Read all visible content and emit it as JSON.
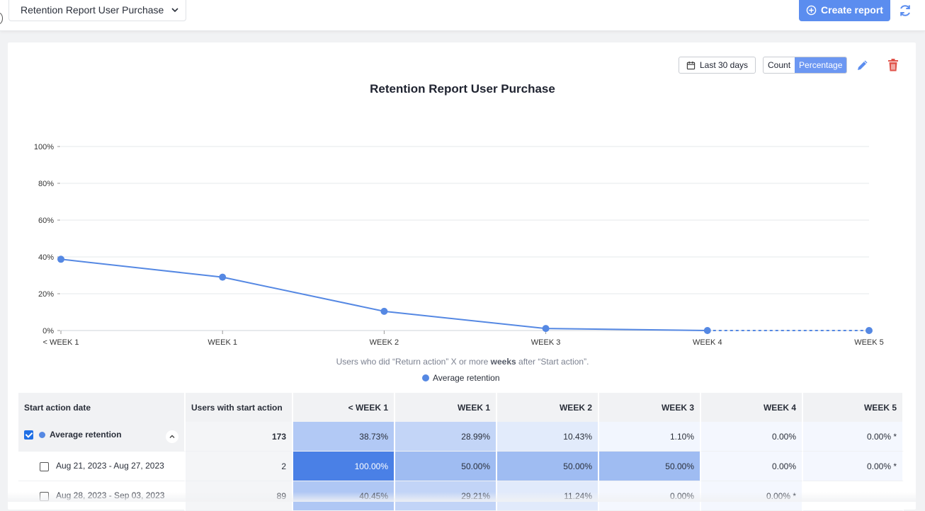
{
  "header": {
    "report_name": "Retention Report User Purchase",
    "create_label": "Create report"
  },
  "controls": {
    "date_range": "Last 30 days",
    "count_label": "Count",
    "percentage_label": "Percentage",
    "active_mode": "Percentage"
  },
  "chart_data": {
    "type": "line",
    "title": "Retention Report User Purchase",
    "categories": [
      "< WEEK 1",
      "WEEK 1",
      "WEEK 2",
      "WEEK 3",
      "WEEK 4",
      "WEEK 5"
    ],
    "series": [
      {
        "name": "Average retention",
        "values": [
          38.73,
          28.99,
          10.43,
          1.1,
          0.0,
          0.0
        ],
        "color": "#5588e3",
        "dashed_from_index": 4
      }
    ],
    "y_ticks": [
      "0%",
      "20%",
      "40%",
      "60%",
      "80%",
      "100%"
    ],
    "ylim": [
      0,
      100
    ],
    "grid": true,
    "legend_position": "bottom-center",
    "caption_parts": [
      "Users who did “Return action” X or more ",
      "weeks",
      " after “Start action”."
    ]
  },
  "table": {
    "headers": [
      "Start action date",
      "Users with start action",
      "< WEEK 1",
      "WEEK 1",
      "WEEK 2",
      "WEEK 3",
      "WEEK 4",
      "WEEK 5"
    ],
    "average_row": {
      "label": "Average retention",
      "users": "173",
      "cells": [
        "38.73%",
        "28.99%",
        "10.43%",
        "1.10%",
        "0.00%",
        "0.00% *"
      ],
      "levels": [
        38.73,
        28.99,
        10.43,
        1.1,
        0.0,
        0.0
      ]
    },
    "rows": [
      {
        "label": "Aug 21, 2023 - Aug 27, 2023",
        "users": "2",
        "cells": [
          "100.00%",
          "50.00%",
          "50.00%",
          "50.00%",
          "0.00%",
          "0.00% *"
        ],
        "levels": [
          100,
          50,
          50,
          50,
          0,
          0
        ]
      },
      {
        "label": "Aug 28, 2023 - Sep 03, 2023",
        "users": "89",
        "cells": [
          "40.45%",
          "29.21%",
          "11.24%",
          "0.00%",
          "0.00% *",
          ""
        ],
        "levels": [
          40.45,
          29.21,
          11.24,
          0,
          0,
          null
        ]
      }
    ]
  }
}
